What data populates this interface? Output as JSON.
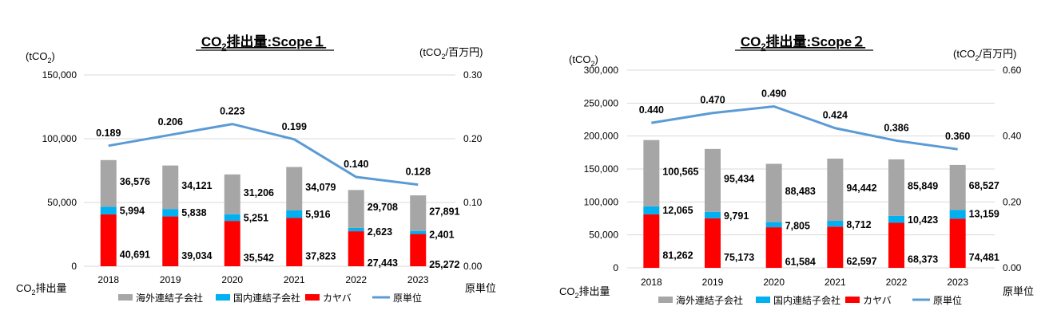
{
  "colors": {
    "overseas": "#A6A6A6",
    "domestic": "#00B0F0",
    "kyb": "#FF0000",
    "intensity": "#5B9BD5",
    "grid": "#D9D9D9"
  },
  "legend": [
    "海外連結子会社",
    "国内連結子会社",
    "カヤバ",
    "原単位"
  ],
  "chart_data": [
    {
      "type": "bar",
      "stacked": true,
      "title_main": "CO",
      "title_sub": "2",
      "title_rest": "排出量:Scope１",
      "left_unit_main": "(tCO",
      "left_unit_sub": "2",
      "left_unit_rest": ")",
      "right_unit_main": "(tCO",
      "right_unit_sub": "2",
      "right_unit_rest": "/百万円)",
      "xlabel_main": "CO",
      "xlabel_sub": "2",
      "xlabel_rest": "排出量",
      "y2label": "原単位",
      "categories": [
        "2018",
        "2019",
        "2020",
        "2021",
        "2022",
        "2023"
      ],
      "ylim": [
        0,
        150000
      ],
      "yticks": [
        "0",
        "50,000",
        "100,000",
        "150,000"
      ],
      "y2lim": [
        0,
        0.3
      ],
      "y2ticks": [
        "0.00",
        "0.10",
        "0.20",
        "0.30"
      ],
      "series": [
        {
          "name": "カヤバ",
          "values": [
            40691,
            39034,
            35542,
            37823,
            27443,
            25272
          ],
          "labels": [
            "40,691",
            "39,034",
            "35,542",
            "37,823",
            "27,443",
            "25,272"
          ]
        },
        {
          "name": "国内連結子会社",
          "values": [
            5994,
            5838,
            5251,
            5916,
            2623,
            2401
          ],
          "labels": [
            "5,994",
            "5,838",
            "5,251",
            "5,916",
            "2,623",
            "2,401"
          ]
        },
        {
          "name": "海外連結子会社",
          "values": [
            36576,
            34121,
            31206,
            34079,
            29708,
            27891
          ],
          "labels": [
            "36,576",
            "34,121",
            "31,206",
            "34,079",
            "29,708",
            "27,891"
          ]
        }
      ],
      "line": {
        "name": "原単位",
        "values": [
          0.189,
          0.206,
          0.223,
          0.199,
          0.14,
          0.128
        ],
        "labels": [
          "0.189",
          "0.206",
          "0.223",
          "0.199",
          "0.140",
          "0.128"
        ]
      }
    },
    {
      "type": "bar",
      "stacked": true,
      "title_main": "CO",
      "title_sub": "2",
      "title_rest": "排出量:Scope２",
      "left_unit_main": "(tCO",
      "left_unit_sub": "2",
      "left_unit_rest": ")",
      "right_unit_main": "(tCO",
      "right_unit_sub": "2",
      "right_unit_rest": "/百万円)",
      "xlabel_main": "CO",
      "xlabel_sub": "2",
      "xlabel_rest": "排出量",
      "y2label": "原単位",
      "categories": [
        "2018",
        "2019",
        "2020",
        "2021",
        "2022",
        "2023"
      ],
      "ylim": [
        0,
        300000
      ],
      "yticks": [
        "0",
        "50,000",
        "100,000",
        "150,000",
        "200,000",
        "250,000",
        "300,000"
      ],
      "y2lim": [
        0,
        0.6
      ],
      "y2ticks": [
        "0.00",
        "0.20",
        "0.40",
        "0.60"
      ],
      "series": [
        {
          "name": "カヤバ",
          "values": [
            81262,
            75173,
            61584,
            62597,
            68373,
            74481
          ],
          "labels": [
            "81,262",
            "75,173",
            "61,584",
            "62,597",
            "68,373",
            "74,481"
          ]
        },
        {
          "name": "国内連結子会社",
          "values": [
            12065,
            9791,
            7805,
            8712,
            10423,
            13159
          ],
          "labels": [
            "12,065",
            "9,791",
            "7,805",
            "8,712",
            "10,423",
            "13,159"
          ]
        },
        {
          "name": "海外連結子会社",
          "values": [
            100565,
            95434,
            88483,
            94442,
            85849,
            68527
          ],
          "labels": [
            "100,565",
            "95,434",
            "88,483",
            "94,442",
            "85,849",
            "68,527"
          ]
        }
      ],
      "line": {
        "name": "原単位",
        "values": [
          0.44,
          0.47,
          0.49,
          0.424,
          0.386,
          0.36
        ],
        "labels": [
          "0.440",
          "0.470",
          "0.490",
          "0.424",
          "0.386",
          "0.360"
        ]
      }
    }
  ]
}
